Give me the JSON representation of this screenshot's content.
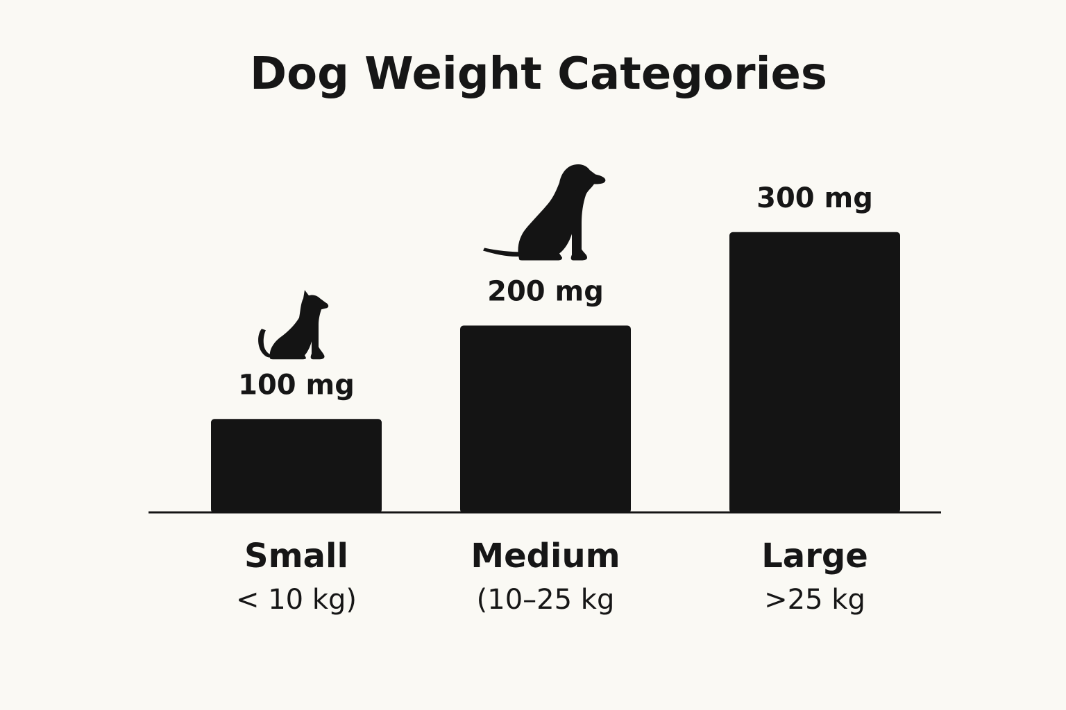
{
  "colors": {
    "background": "#faf9f4",
    "bar": "#141414",
    "text": "#161616"
  },
  "chart_data": {
    "type": "bar",
    "title": "Dog Weight Categories",
    "categories": [
      "Small",
      "Medium",
      "Large"
    ],
    "category_ranges": [
      "< 10 kg)",
      "(10–25 kg",
      ">25 kg"
    ],
    "values": [
      100,
      200,
      300
    ],
    "value_labels": [
      "100 mg",
      "200 mg",
      "300 mg"
    ],
    "icons": [
      "small-dog-icon",
      "medium-dog-icon",
      null
    ],
    "ylim": [
      0,
      400
    ],
    "grid": false,
    "legend": "none"
  }
}
